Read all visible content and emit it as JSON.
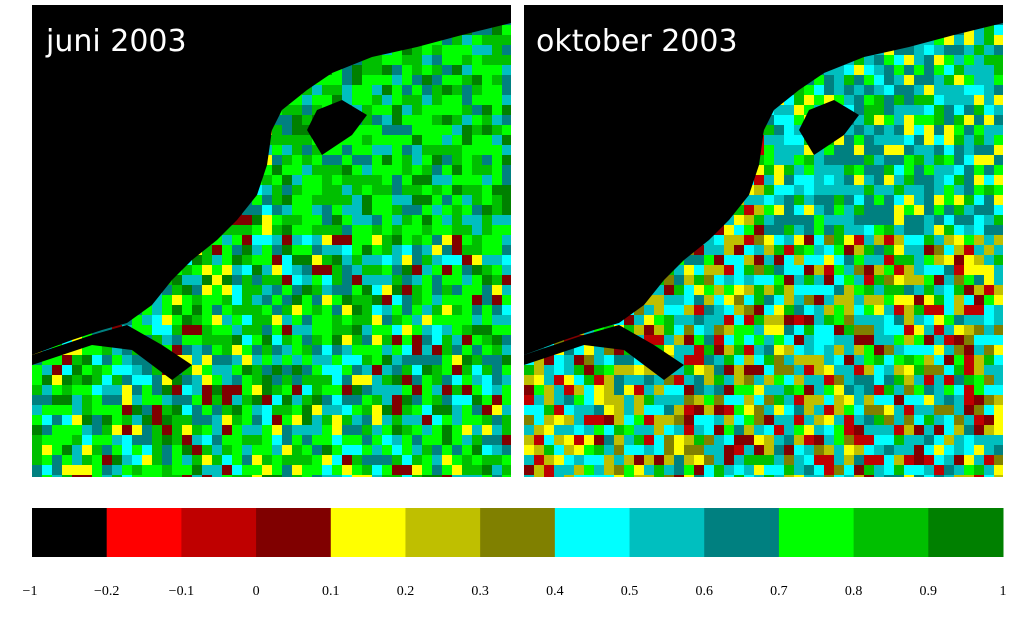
{
  "panels": [
    {
      "title": "juni 2003"
    },
    {
      "title": "oktober 2003"
    }
  ],
  "legend": {
    "colors": [
      "#000000",
      "#ff0000",
      "#bf0000",
      "#800000",
      "#ffff00",
      "#bfbf00",
      "#808000",
      "#00ffff",
      "#00bfbf",
      "#008080",
      "#00ff00",
      "#00bf00",
      "#008000"
    ],
    "ticks": [
      "−1",
      "−0.2",
      "−0.1",
      "0",
      "0.1",
      "0.2",
      "0.3",
      "0.4",
      "0.5",
      "0.6",
      "0.7",
      "0.8",
      "0.9",
      "1"
    ]
  }
}
